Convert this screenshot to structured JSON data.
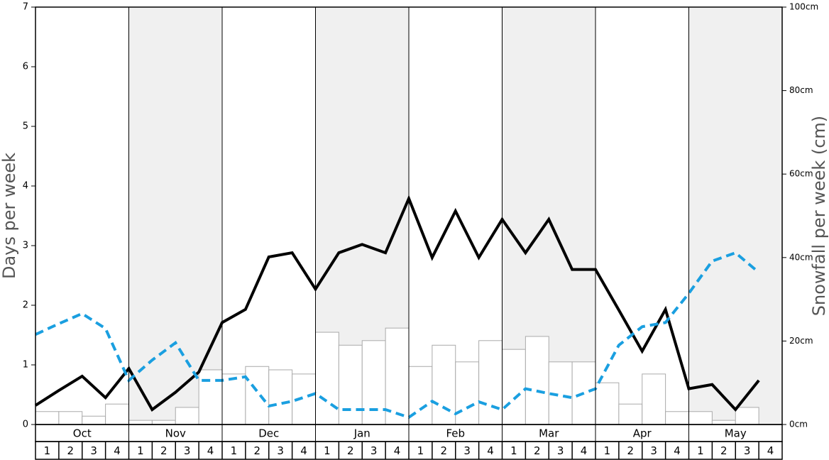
{
  "chart_data": {
    "type": "bar_line",
    "ylabel": "Days per week",
    "y2label": "Snowfall per week (cm)",
    "months": [
      "Oct",
      "Nov",
      "Dec",
      "Jan",
      "Feb",
      "Mar",
      "Apr",
      "May"
    ],
    "categories": [
      "1",
      "2",
      "3",
      "4",
      "1",
      "2",
      "3",
      "4",
      "1",
      "2",
      "3",
      "4",
      "1",
      "2",
      "3",
      "4",
      "1",
      "2",
      "3",
      "4",
      "1",
      "2",
      "3",
      "4",
      "1",
      "2",
      "3",
      "4",
      "1",
      "2",
      "3",
      "4"
    ],
    "ylim": [
      0,
      7
    ],
    "yticks": [
      0,
      1,
      2,
      3,
      4,
      5,
      6,
      7
    ],
    "y2lim": [
      0,
      100
    ],
    "y2ticks": [
      {
        "value": 0,
        "label": "0cm"
      },
      {
        "value": 20,
        "label": "20cm"
      },
      {
        "value": 40,
        "label": "40cm"
      },
      {
        "value": 60,
        "label": "60cm"
      },
      {
        "value": 80,
        "label": "80cm"
      },
      {
        "value": 100,
        "label": "100cm"
      }
    ],
    "shade_color": "#f0f0f0",
    "series": [
      {
        "kind": "bar",
        "axis": "y2",
        "color": "#ffffff",
        "edgecolor": "#aaaaaa",
        "values": [
          3.1,
          3.1,
          2.0,
          4.9,
          1.0,
          1.0,
          4.1,
          13.1,
          12.1,
          13.9,
          13.1,
          12.1,
          22.1,
          19.0,
          20.1,
          23.1,
          13.9,
          19.0,
          15.0,
          20.1,
          18.0,
          21.1,
          15.0,
          15.0,
          10.0,
          4.9,
          12.1,
          3.1,
          3.1,
          1.0,
          4.1,
          0
        ]
      },
      {
        "kind": "line",
        "color": "#000000",
        "dashed": false,
        "values": [
          0.32,
          0.57,
          0.81,
          0.45,
          0.94,
          0.25,
          0.54,
          0.88,
          1.71,
          1.93,
          2.81,
          2.88,
          2.27,
          2.88,
          3.02,
          2.88,
          3.79,
          2.8,
          3.58,
          2.8,
          3.44,
          2.88,
          3.44,
          2.6,
          2.6,
          1.92,
          1.23,
          1.93,
          0.6,
          0.67,
          0.25,
          0.74
        ]
      },
      {
        "kind": "line",
        "color": "#1a9fe0",
        "dashed": true,
        "values": [
          1.51,
          1.69,
          1.86,
          1.61,
          0.74,
          1.08,
          1.37,
          0.74,
          0.74,
          0.8,
          0.31,
          0.39,
          0.52,
          0.25,
          0.25,
          0.25,
          0.12,
          0.39,
          0.18,
          0.38,
          0.25,
          0.6,
          0.52,
          0.45,
          0.6,
          1.33,
          1.64,
          1.71,
          2.2,
          2.74,
          2.88,
          2.55
        ]
      }
    ]
  }
}
